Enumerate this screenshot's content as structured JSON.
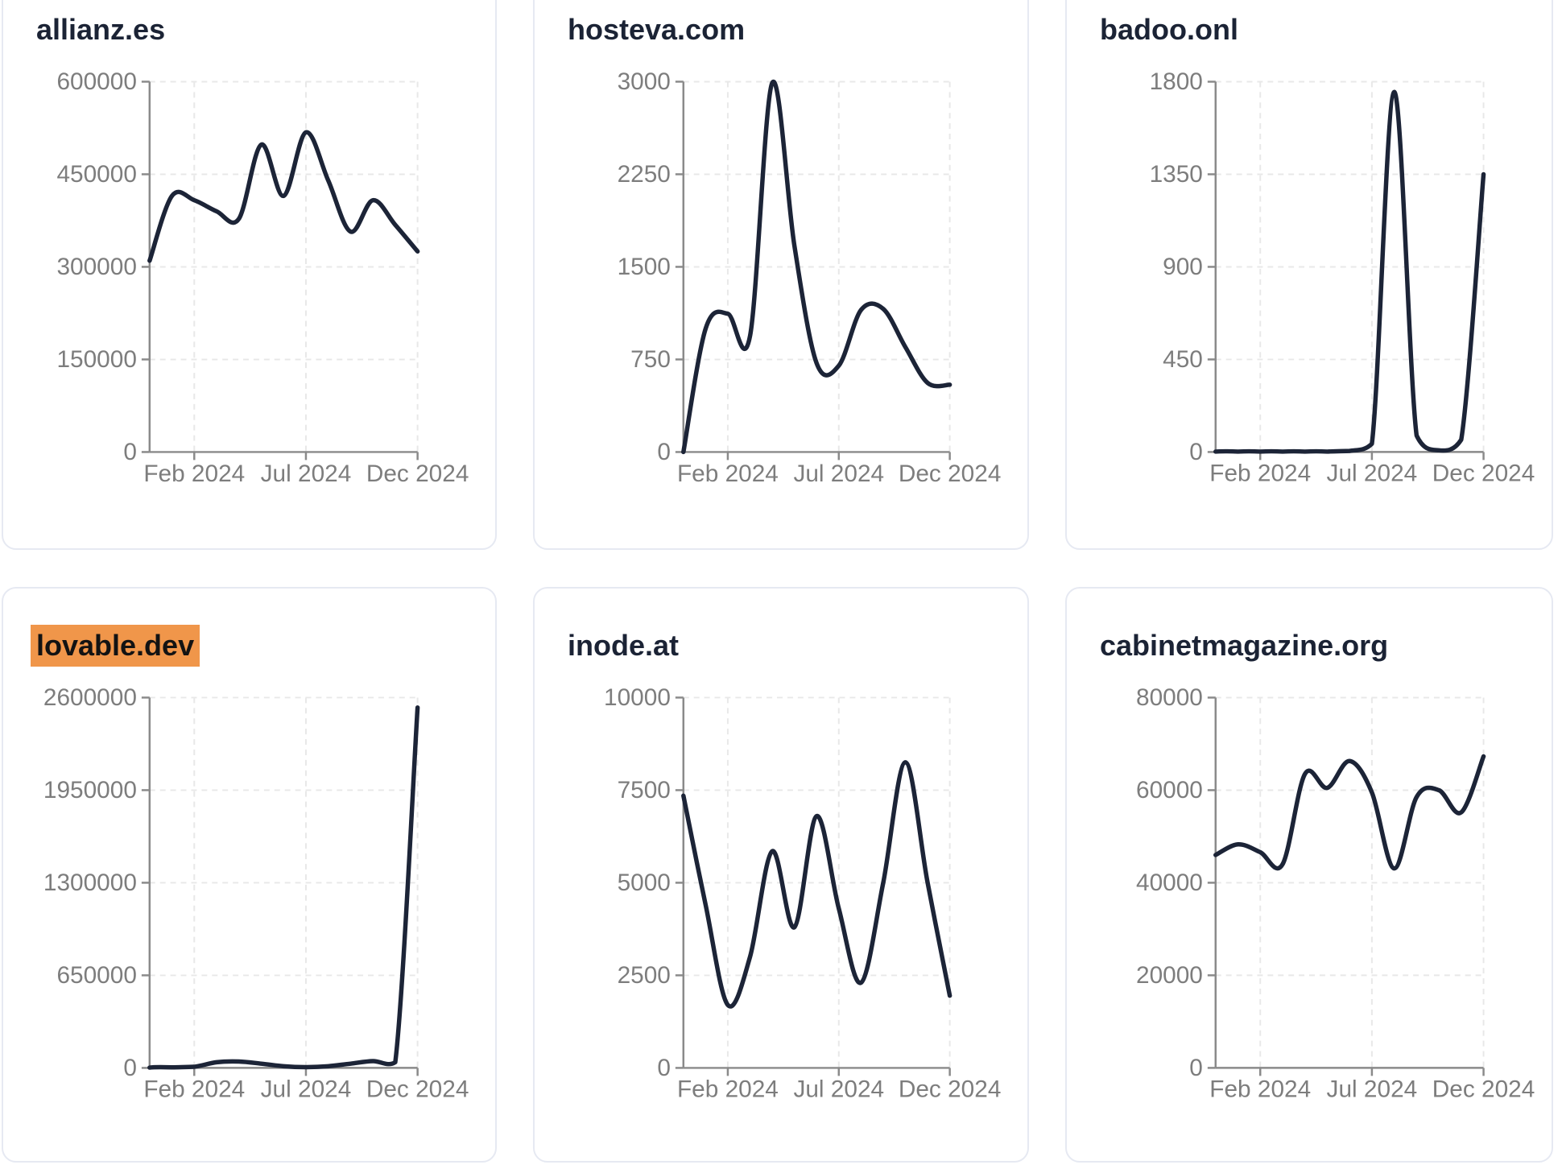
{
  "style": {
    "line_color": "#1c2437",
    "title_color": "#1b2335",
    "axis_color": "#8a8a8a",
    "tick_label_color": "#7d7d7d",
    "grid_color": "#e8e8e8",
    "highlight_bg": "#f0964a",
    "highlight_text": "#131313",
    "card_border": "#e6e9f2",
    "card_bg": "#ffffff",
    "page_bg": "#ffffff"
  },
  "chart_data": [
    {
      "type": "line",
      "title": "allianz.es",
      "highlighted": false,
      "x": [
        "Dec 2023",
        "Jan 2024",
        "Feb 2024",
        "Mar 2024",
        "Apr 2024",
        "May 2024",
        "Jun 2024",
        "Jul 2024",
        "Aug 2024",
        "Sep 2024",
        "Oct 2024",
        "Nov 2024",
        "Dec 2024"
      ],
      "values": [
        310000,
        415000,
        408000,
        390000,
        378000,
        498000,
        415000,
        518000,
        440000,
        357000,
        408000,
        368000,
        325000
      ],
      "y_ticks": [
        0,
        150000,
        300000,
        450000,
        600000
      ],
      "ylim": [
        0,
        600000
      ],
      "x_tick_labels": [
        "Feb 2024",
        "Jul 2024",
        "Dec 2024"
      ],
      "x_tick_indices": [
        2,
        7,
        12
      ],
      "grid": true,
      "legend": false
    },
    {
      "type": "line",
      "title": "hosteva.com",
      "highlighted": false,
      "x": [
        "Dec 2023",
        "Jan 2024",
        "Feb 2024",
        "Mar 2024",
        "Apr 2024",
        "May 2024",
        "Jun 2024",
        "Jul 2024",
        "Aug 2024",
        "Sep 2024",
        "Oct 2024",
        "Nov 2024",
        "Dec 2024"
      ],
      "values": [
        0,
        1000,
        1120,
        940,
        2990,
        1670,
        720,
        700,
        1150,
        1160,
        850,
        560,
        545
      ],
      "y_ticks": [
        0,
        750,
        1500,
        2250,
        3000
      ],
      "ylim": [
        0,
        3000
      ],
      "x_tick_labels": [
        "Feb 2024",
        "Jul 2024",
        "Dec 2024"
      ],
      "x_tick_indices": [
        2,
        7,
        12
      ],
      "grid": true,
      "legend": false
    },
    {
      "type": "line",
      "title": "badoo.onl",
      "highlighted": false,
      "x": [
        "Dec 2023",
        "Jan 2024",
        "Feb 2024",
        "Mar 2024",
        "Apr 2024",
        "May 2024",
        "Jun 2024",
        "Jul 2024",
        "Aug 2024",
        "Sep 2024",
        "Oct 2024",
        "Nov 2024",
        "Dec 2024"
      ],
      "values": [
        2,
        2,
        2,
        2,
        2,
        2,
        5,
        40,
        1750,
        80,
        8,
        60,
        1350
      ],
      "y_ticks": [
        0,
        450,
        900,
        1350,
        1800
      ],
      "ylim": [
        0,
        1800
      ],
      "x_tick_labels": [
        "Feb 2024",
        "Jul 2024",
        "Dec 2024"
      ],
      "x_tick_indices": [
        2,
        7,
        12
      ],
      "grid": true,
      "legend": false
    },
    {
      "type": "line",
      "title": "lovable.dev",
      "highlighted": true,
      "x": [
        "Dec 2023",
        "Jan 2024",
        "Feb 2024",
        "Mar 2024",
        "Apr 2024",
        "May 2024",
        "Jun 2024",
        "Jul 2024",
        "Aug 2024",
        "Sep 2024",
        "Oct 2024",
        "Nov 2024",
        "Dec 2024"
      ],
      "values": [
        2000,
        4000,
        8000,
        40000,
        45000,
        30000,
        12000,
        5000,
        12000,
        30000,
        48000,
        40000,
        2530000
      ],
      "y_ticks": [
        0,
        650000,
        1300000,
        1950000,
        2600000
      ],
      "ylim": [
        0,
        2600000
      ],
      "x_tick_labels": [
        "Feb 2024",
        "Jul 2024",
        "Dec 2024"
      ],
      "x_tick_indices": [
        2,
        7,
        12
      ],
      "grid": true,
      "legend": false
    },
    {
      "type": "line",
      "title": "inode.at",
      "highlighted": false,
      "x": [
        "Dec 2023",
        "Jan 2024",
        "Feb 2024",
        "Mar 2024",
        "Apr 2024",
        "May 2024",
        "Jun 2024",
        "Jul 2024",
        "Aug 2024",
        "Sep 2024",
        "Oct 2024",
        "Nov 2024",
        "Dec 2024"
      ],
      "values": [
        7350,
        4400,
        1700,
        3000,
        5850,
        3800,
        6800,
        4300,
        2300,
        5000,
        8250,
        5000,
        1950
      ],
      "y_ticks": [
        0,
        2500,
        5000,
        7500,
        10000
      ],
      "ylim": [
        0,
        10000
      ],
      "x_tick_labels": [
        "Feb 2024",
        "Jul 2024",
        "Dec 2024"
      ],
      "x_tick_indices": [
        2,
        7,
        12
      ],
      "grid": true,
      "legend": false
    },
    {
      "type": "line",
      "title": "cabinetmagazine.org",
      "highlighted": false,
      "x": [
        "Dec 2023",
        "Jan 2024",
        "Feb 2024",
        "Mar 2024",
        "Apr 2024",
        "May 2024",
        "Jun 2024",
        "Jul 2024",
        "Aug 2024",
        "Sep 2024",
        "Oct 2024",
        "Nov 2024",
        "Dec 2024"
      ],
      "values": [
        46000,
        48300,
        46600,
        44000,
        63500,
        60500,
        66300,
        59500,
        43100,
        58500,
        60000,
        55200,
        67300
      ],
      "y_ticks": [
        0,
        20000,
        40000,
        60000,
        80000
      ],
      "ylim": [
        0,
        80000
      ],
      "x_tick_labels": [
        "Feb 2024",
        "Jul 2024",
        "Dec 2024"
      ],
      "x_tick_indices": [
        2,
        7,
        12
      ],
      "grid": true,
      "legend": false
    }
  ]
}
